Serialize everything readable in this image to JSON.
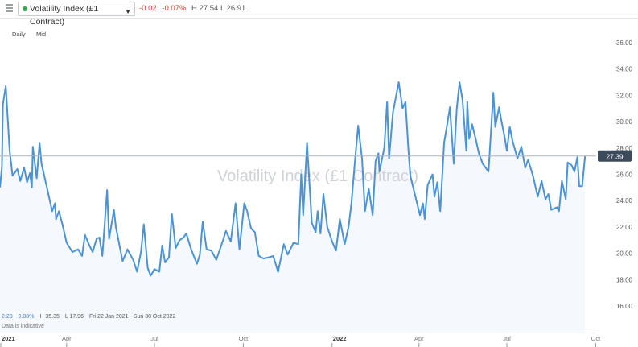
{
  "header": {
    "menu_icon": "hamburger-icon",
    "instrument": "Volatility Index (£1 Contract)",
    "status_color": "#2fa84f",
    "change": "-0.02",
    "change_pct": "-0.07%",
    "high": "H 27.54",
    "low": "L 26.91"
  },
  "options": {
    "interval": "Daily",
    "price_type": "Mid"
  },
  "footer": {
    "change": "2.28",
    "change_pct": "9.08%",
    "high": "H 35.35",
    "low": "L 17.96",
    "range": "Fri 22 Jan 2021 - Sun 30 Oct 2022",
    "note": "Data is indicative"
  },
  "chart_data": {
    "type": "area",
    "title": "Volatility Index (£1 Contract)",
    "ylim": [
      16,
      36
    ],
    "y_ticks": [
      "16.00",
      "18.00",
      "20.00",
      "22.00",
      "24.00",
      "26.00",
      "28.00",
      "30.00",
      "32.00",
      "34.00",
      "36.00"
    ],
    "x_ticks": [
      {
        "label": "2021",
        "date": "2021-01-01"
      },
      {
        "label": "Apr",
        "date": "2021-04-01"
      },
      {
        "label": "Jul",
        "date": "2021-07-01"
      },
      {
        "label": "Oct",
        "date": "2021-10-01"
      },
      {
        "label": "2022",
        "date": "2022-01-01"
      },
      {
        "label": "Apr",
        "date": "2022-04-01"
      },
      {
        "label": "Jul",
        "date": "2022-07-01"
      },
      {
        "label": "Oct",
        "date": "2022-10-01"
      }
    ],
    "last_price": "27.39",
    "line_color": "#4b93d4",
    "grid": false,
    "points": [
      [
        "2021-01-22",
        25.0
      ],
      [
        "2021-01-24",
        26.6
      ],
      [
        "2021-01-25",
        31.3
      ],
      [
        "2021-01-28",
        32.7
      ],
      [
        "2021-02-01",
        27.8
      ],
      [
        "2021-02-04",
        25.9
      ],
      [
        "2021-02-09",
        26.4
      ],
      [
        "2021-02-12",
        25.5
      ],
      [
        "2021-02-16",
        26.5
      ],
      [
        "2021-02-19",
        25.4
      ],
      [
        "2021-02-22",
        26.1
      ],
      [
        "2021-02-24",
        25.0
      ],
      [
        "2021-02-25",
        28.1
      ],
      [
        "2021-03-01",
        25.7
      ],
      [
        "2021-03-04",
        28.4
      ],
      [
        "2021-03-06",
        26.8
      ],
      [
        "2021-03-11",
        25.2
      ],
      [
        "2021-03-17",
        23.2
      ],
      [
        "2021-03-20",
        23.8
      ],
      [
        "2021-03-21",
        22.6
      ],
      [
        "2021-03-24",
        23.2
      ],
      [
        "2021-03-28",
        22.1
      ],
      [
        "2021-04-01",
        20.8
      ],
      [
        "2021-04-07",
        20.1
      ],
      [
        "2021-04-13",
        20.3
      ],
      [
        "2021-04-17",
        19.8
      ],
      [
        "2021-04-20",
        21.4
      ],
      [
        "2021-04-24",
        20.7
      ],
      [
        "2021-04-28",
        20.1
      ],
      [
        "2021-05-02",
        21.1
      ],
      [
        "2021-05-05",
        21.2
      ],
      [
        "2021-05-08",
        19.8
      ],
      [
        "2021-05-13",
        24.8
      ],
      [
        "2021-05-15",
        21.1
      ],
      [
        "2021-05-20",
        23.3
      ],
      [
        "2021-05-22",
        22.0
      ],
      [
        "2021-05-25",
        20.9
      ],
      [
        "2021-05-29",
        19.4
      ],
      [
        "2021-06-03",
        20.3
      ],
      [
        "2021-06-09",
        19.5
      ],
      [
        "2021-06-13",
        18.6
      ],
      [
        "2021-06-17",
        20.1
      ],
      [
        "2021-06-20",
        22.2
      ],
      [
        "2021-06-24",
        18.9
      ],
      [
        "2021-06-27",
        18.3
      ],
      [
        "2021-07-01",
        18.8
      ],
      [
        "2021-07-06",
        18.6
      ],
      [
        "2021-07-09",
        20.6
      ],
      [
        "2021-07-12",
        19.3
      ],
      [
        "2021-07-16",
        19.7
      ],
      [
        "2021-07-19",
        23.0
      ],
      [
        "2021-07-23",
        20.4
      ],
      [
        "2021-07-27",
        21.0
      ],
      [
        "2021-07-31",
        21.2
      ],
      [
        "2021-08-03",
        21.5
      ],
      [
        "2021-08-08",
        20.3
      ],
      [
        "2021-08-14",
        19.2
      ],
      [
        "2021-08-17",
        19.9
      ],
      [
        "2021-08-20",
        22.4
      ],
      [
        "2021-08-24",
        20.3
      ],
      [
        "2021-08-29",
        20.2
      ],
      [
        "2021-09-03",
        19.5
      ],
      [
        "2021-09-10",
        21.0
      ],
      [
        "2021-09-13",
        21.7
      ],
      [
        "2021-09-18",
        20.9
      ],
      [
        "2021-09-23",
        23.8
      ],
      [
        "2021-09-27",
        20.3
      ],
      [
        "2021-10-02",
        23.8
      ],
      [
        "2021-10-05",
        23.2
      ],
      [
        "2021-10-09",
        21.9
      ],
      [
        "2021-10-13",
        21.6
      ],
      [
        "2021-10-17",
        19.8
      ],
      [
        "2021-10-22",
        19.6
      ],
      [
        "2021-10-28",
        19.7
      ],
      [
        "2021-11-01",
        19.8
      ],
      [
        "2021-11-06",
        18.6
      ],
      [
        "2021-11-12",
        20.7
      ],
      [
        "2021-11-16",
        19.9
      ],
      [
        "2021-11-22",
        20.8
      ],
      [
        "2021-11-27",
        20.7
      ],
      [
        "2021-11-30",
        26.0
      ],
      [
        "2021-12-02",
        22.9
      ],
      [
        "2021-12-06",
        28.4
      ],
      [
        "2021-12-11",
        22.3
      ],
      [
        "2021-12-15",
        21.6
      ],
      [
        "2021-12-17",
        23.2
      ],
      [
        "2021-12-20",
        21.5
      ],
      [
        "2021-12-23",
        24.5
      ],
      [
        "2021-12-27",
        22.0
      ],
      [
        "2022-01-01",
        20.9
      ],
      [
        "2022-01-05",
        20.2
      ],
      [
        "2022-01-09",
        22.6
      ],
      [
        "2022-01-14",
        20.7
      ],
      [
        "2022-01-18",
        22.0
      ],
      [
        "2022-01-21",
        23.8
      ],
      [
        "2022-01-25",
        27.3
      ],
      [
        "2022-01-28",
        29.7
      ],
      [
        "2022-02-01",
        27.2
      ],
      [
        "2022-02-04",
        23.2
      ],
      [
        "2022-02-08",
        24.9
      ],
      [
        "2022-02-12",
        22.9
      ],
      [
        "2022-02-15",
        27.0
      ],
      [
        "2022-02-18",
        27.6
      ],
      [
        "2022-02-19",
        26.2
      ],
      [
        "2022-02-24",
        28.0
      ],
      [
        "2022-02-27",
        31.5
      ],
      [
        "2022-03-01",
        27.2
      ],
      [
        "2022-03-05",
        30.7
      ],
      [
        "2022-03-11",
        33.0
      ],
      [
        "2022-03-15",
        31.0
      ],
      [
        "2022-03-18",
        31.5
      ],
      [
        "2022-03-21",
        27.9
      ],
      [
        "2022-03-23",
        25.9
      ],
      [
        "2022-03-29",
        24.1
      ],
      [
        "2022-04-02",
        22.9
      ],
      [
        "2022-04-05",
        23.8
      ],
      [
        "2022-04-07",
        22.6
      ],
      [
        "2022-04-10",
        25.2
      ],
      [
        "2022-04-15",
        26.0
      ],
      [
        "2022-04-17",
        24.3
      ],
      [
        "2022-04-20",
        25.4
      ],
      [
        "2022-04-23",
        23.2
      ],
      [
        "2022-04-27",
        28.4
      ],
      [
        "2022-04-30",
        29.7
      ],
      [
        "2022-05-03",
        31.1
      ],
      [
        "2022-05-07",
        26.8
      ],
      [
        "2022-05-10",
        30.9
      ],
      [
        "2022-05-13",
        33.0
      ],
      [
        "2022-05-16",
        31.7
      ],
      [
        "2022-05-20",
        27.8
      ],
      [
        "2022-05-21",
        31.5
      ],
      [
        "2022-05-23",
        28.7
      ],
      [
        "2022-05-26",
        29.8
      ],
      [
        "2022-05-30",
        28.6
      ],
      [
        "2022-06-02",
        27.6
      ],
      [
        "2022-06-06",
        26.8
      ],
      [
        "2022-06-12",
        26.2
      ],
      [
        "2022-06-17",
        32.2
      ],
      [
        "2022-06-19",
        29.6
      ],
      [
        "2022-06-23",
        31.1
      ],
      [
        "2022-06-25",
        30.2
      ],
      [
        "2022-06-29",
        28.7
      ],
      [
        "2022-07-01",
        27.8
      ],
      [
        "2022-07-04",
        29.6
      ],
      [
        "2022-07-07",
        28.5
      ],
      [
        "2022-07-12",
        27.2
      ],
      [
        "2022-07-16",
        28.1
      ],
      [
        "2022-07-20",
        26.5
      ],
      [
        "2022-07-23",
        27.1
      ],
      [
        "2022-07-28",
        25.9
      ],
      [
        "2022-08-02",
        24.3
      ],
      [
        "2022-08-06",
        25.5
      ],
      [
        "2022-08-10",
        24.1
      ],
      [
        "2022-08-13",
        24.5
      ],
      [
        "2022-08-16",
        23.3
      ],
      [
        "2022-08-22",
        23.5
      ],
      [
        "2022-08-24",
        23.2
      ],
      [
        "2022-08-27",
        25.5
      ],
      [
        "2022-08-31",
        24.1
      ],
      [
        "2022-09-02",
        26.9
      ],
      [
        "2022-09-06",
        26.7
      ],
      [
        "2022-09-09",
        26.2
      ],
      [
        "2022-09-12",
        27.3
      ],
      [
        "2022-09-14",
        25.1
      ],
      [
        "2022-09-17",
        25.1
      ],
      [
        "2022-09-20",
        27.39
      ]
    ]
  }
}
